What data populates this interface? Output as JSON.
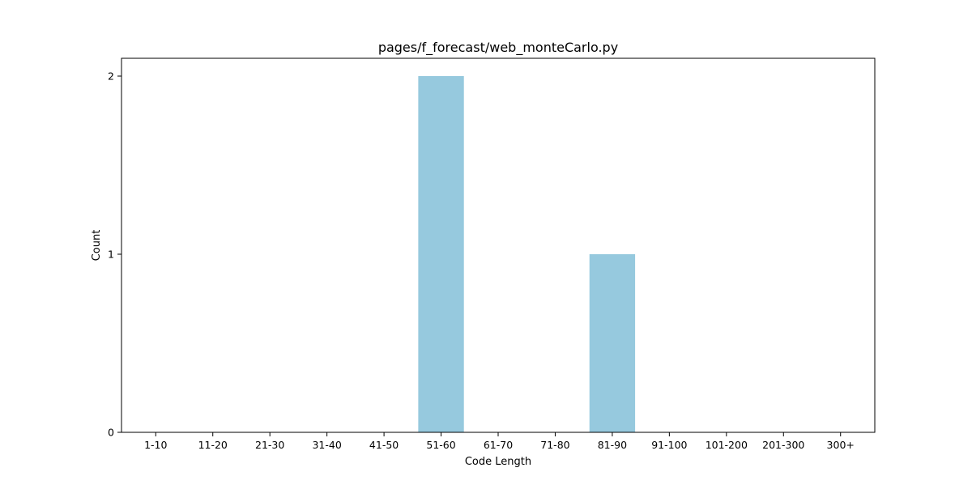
{
  "chart_data": {
    "type": "bar",
    "title": "pages/f_forecast/web_monteCarlo.py",
    "xlabel": "Code Length",
    "ylabel": "Count",
    "categories": [
      "1-10",
      "11-20",
      "21-30",
      "31-40",
      "41-50",
      "51-60",
      "61-70",
      "71-80",
      "81-90",
      "91-100",
      "101-200",
      "201-300",
      "300+"
    ],
    "values": [
      0,
      0,
      0,
      0,
      0,
      2,
      0,
      0,
      1,
      0,
      0,
      0,
      0
    ],
    "ylim": [
      0,
      2.1
    ],
    "yticks": [
      0,
      1,
      2
    ],
    "grid": false,
    "legend": false,
    "bar_color": "#96c9de"
  }
}
